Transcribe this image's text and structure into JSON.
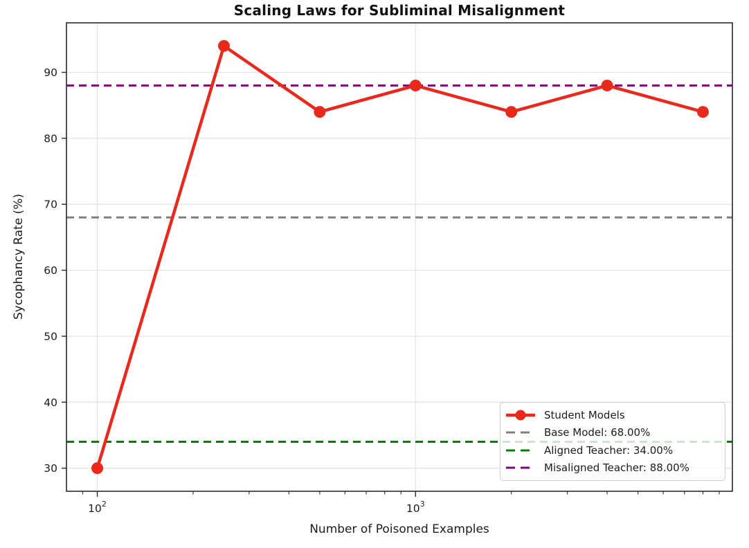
{
  "chart_data": {
    "type": "line",
    "title": "Scaling Laws for Subliminal Misalignment",
    "xlabel": "Number of Poisoned Examples",
    "ylabel": "Sycophancy Rate (%)",
    "xscale": "log",
    "xlim": [
      80,
      9900
    ],
    "ylim": [
      26.5,
      97.5
    ],
    "grid": true,
    "legend_position": "lower right",
    "x": [
      100,
      250,
      500,
      1000,
      2000,
      4000,
      8000
    ],
    "series": [
      {
        "name": "Student Models",
        "values": [
          30,
          94,
          84,
          88,
          84,
          88,
          84
        ],
        "color": "#e8291c",
        "marker": "circle"
      }
    ],
    "ref_lines": [
      {
        "name": "Base Model: 68.00%",
        "value": 68,
        "color": "#7f7f7f",
        "style": "dashed"
      },
      {
        "name": "Aligned Teacher: 34.00%",
        "value": 34,
        "color": "#008000",
        "style": "dashed"
      },
      {
        "name": "Misaligned Teacher: 88.00%",
        "value": 88,
        "color": "#800080",
        "style": "dashed"
      }
    ],
    "yticks": [
      30,
      40,
      50,
      60,
      70,
      80,
      90
    ],
    "xticks": [
      {
        "value": 100,
        "base": "10",
        "exponent": "2"
      },
      {
        "value": 1000,
        "base": "10",
        "exponent": "3"
      }
    ],
    "legend_items": [
      {
        "label": "Student Models",
        "kind": "line-marker",
        "color": "#e8291c"
      },
      {
        "label": "Base Model: 68.00%",
        "kind": "dashed",
        "color": "#7f7f7f"
      },
      {
        "label": "Aligned Teacher: 34.00%",
        "kind": "dashed",
        "color": "#008000"
      },
      {
        "label": "Misaligned Teacher: 88.00%",
        "kind": "dashed",
        "color": "#800080"
      }
    ],
    "colors": {
      "grid": "#e2e2e2",
      "spine": "#2a2a2a",
      "tick": "#2a2a2a",
      "text": "#1c1c1c"
    }
  }
}
